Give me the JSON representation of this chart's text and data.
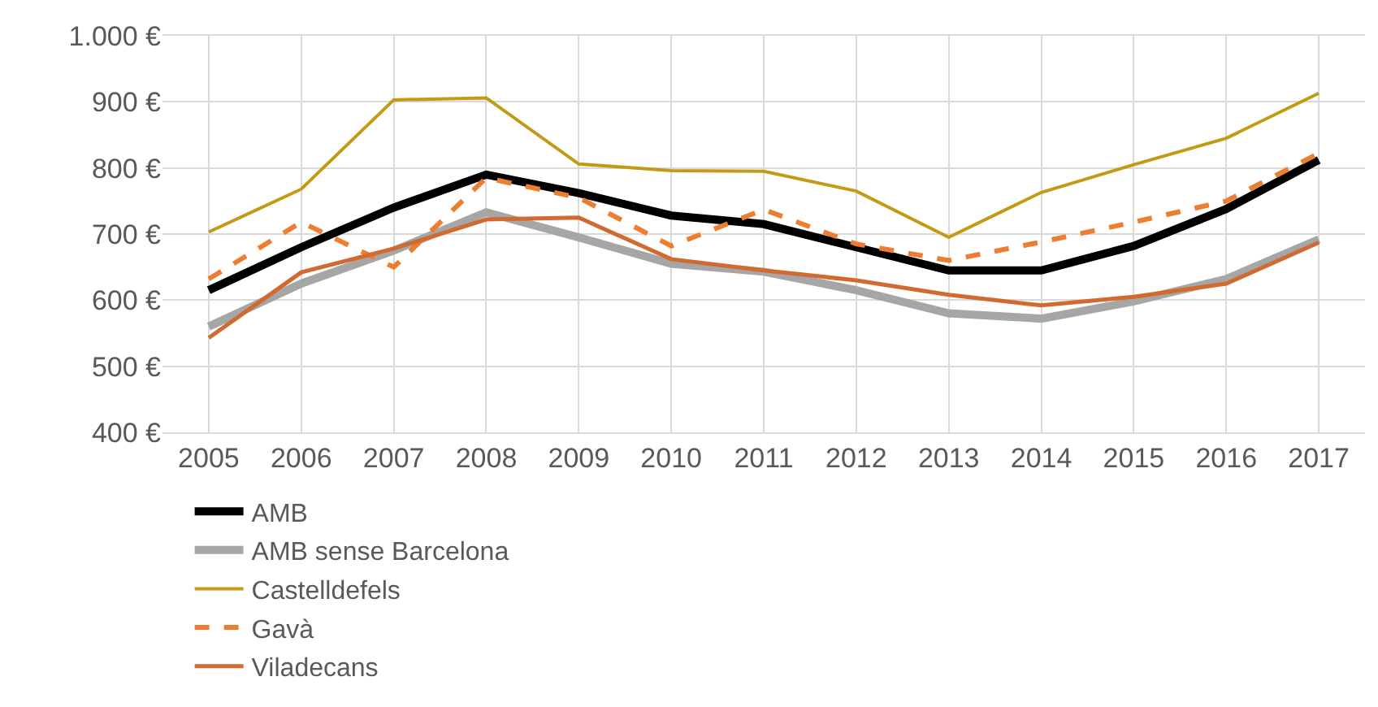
{
  "chart_data": {
    "type": "line",
    "categories": [
      "2005",
      "2006",
      "2007",
      "2008",
      "2009",
      "2010",
      "2011",
      "2012",
      "2013",
      "2014",
      "2015",
      "2016",
      "2017"
    ],
    "series": [
      {
        "name": "AMB",
        "color": "#000000",
        "values": [
          615,
          680,
          740,
          790,
          762,
          728,
          715,
          680,
          645,
          645,
          682,
          738,
          812
        ]
      },
      {
        "name": "AMB sense Barcelona",
        "color": "#a6a6a6",
        "values": [
          560,
          625,
          675,
          733,
          695,
          655,
          643,
          615,
          580,
          572,
          598,
          632,
          692
        ]
      },
      {
        "name": "Castelldefels",
        "color": "#c49a14",
        "values": [
          703,
          768,
          903,
          906,
          806,
          796,
          795,
          765,
          695,
          763,
          805,
          845,
          913
        ]
      },
      {
        "name": "Gavà",
        "color": "#ed7d31",
        "line_style": "dashed",
        "values": [
          632,
          718,
          650,
          785,
          755,
          682,
          737,
          685,
          660,
          688,
          718,
          750,
          822
        ]
      },
      {
        "name": "Viladecans",
        "color": "#d06a30",
        "values": [
          543,
          642,
          678,
          722,
          725,
          662,
          645,
          630,
          608,
          592,
          605,
          625,
          687
        ]
      }
    ],
    "ylim": [
      400,
      1000
    ],
    "yticks": [
      {
        "value": 400,
        "label": "400 €"
      },
      {
        "value": 500,
        "label": "500 €"
      },
      {
        "value": 600,
        "label": "600 €"
      },
      {
        "value": 700,
        "label": "700 €"
      },
      {
        "value": 800,
        "label": "800 €"
      },
      {
        "value": 900,
        "label": "900 €"
      },
      {
        "value": 1000,
        "label": "1.000 €"
      }
    ],
    "grid": true,
    "legend": "bottom",
    "marker": "none",
    "line_style": "solid"
  }
}
